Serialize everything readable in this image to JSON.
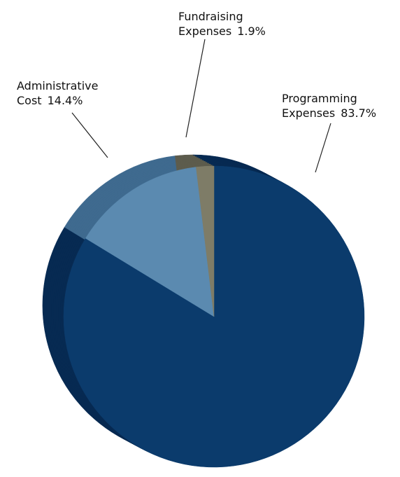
{
  "chart_data": {
    "type": "pie",
    "style": "3d-exploded",
    "slices": [
      {
        "label_line1": "Programming",
        "label_line2": "Expenses",
        "pct_text": "83.7%",
        "value": 83.7,
        "color": "#0b3b6c",
        "side_color": "#072a52"
      },
      {
        "label_line1": "Administrative",
        "label_line2": "Cost",
        "pct_text": "14.4%",
        "value": 14.4,
        "color": "#5b8ab0",
        "side_color": "#3f6a8f"
      },
      {
        "label_line1": "Fundraising",
        "label_line2": "Expenses",
        "pct_text": "1.9%",
        "value": 1.9,
        "color": "#7e7c67",
        "side_color": "#5d5c4d"
      }
    ]
  }
}
